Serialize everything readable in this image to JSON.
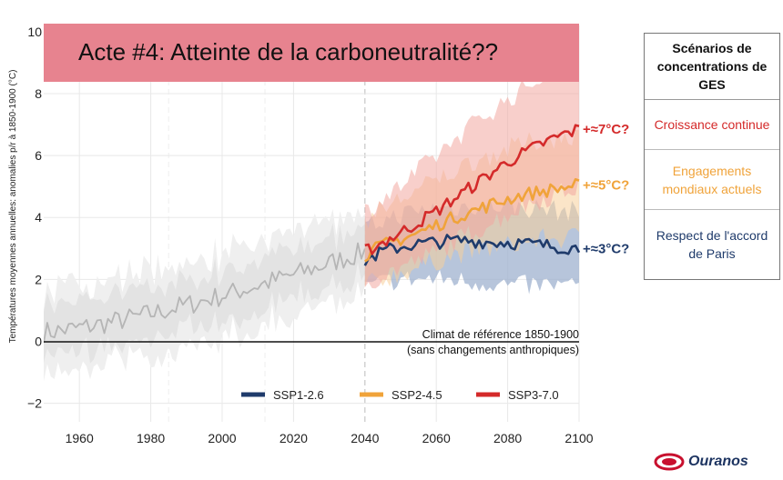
{
  "chart_data": {
    "type": "line",
    "title": "Acte #4: Atteinte de la carboneutralité??",
    "ylabel": "Températures moyennes annuelles: anomalies p/r à 1850-1900 (°C)",
    "xlabel": "",
    "xlim": [
      1950,
      2100
    ],
    "ylim": [
      -2.6,
      10.2
    ],
    "x_ticks": [
      "1960",
      "1980",
      "2000",
      "2020",
      "2040",
      "2060",
      "2080",
      "2100"
    ],
    "y_ticks": [
      "−2",
      "0",
      "2",
      "4",
      "6",
      "8",
      "10"
    ],
    "grid": true,
    "historical": {
      "x_start": 1950,
      "x_end": 2040,
      "mean_start": 0.3,
      "mean_end": 2.9,
      "colors": {
        "line": "#b5b5b5",
        "band": "#e3e3e3",
        "band_outer": "#efefef"
      }
    },
    "reference_line": {
      "y": 0,
      "label_line1": "Climat de référence 1850-1900",
      "label_line2": "(sans changements anthropiques)"
    },
    "series": [
      {
        "name": "SSP1-2.6",
        "color": "#1f3b6b",
        "band_color": "#9fb2cf",
        "x": [
          2040,
          2045,
          2050,
          2055,
          2060,
          2065,
          2070,
          2075,
          2080,
          2085,
          2090,
          2095,
          2100
        ],
        "values": [
          2.6,
          2.9,
          3.05,
          3.15,
          3.2,
          3.25,
          3.25,
          3.2,
          3.2,
          3.15,
          3.1,
          3.05,
          3.0
        ],
        "band_low": [
          1.7,
          1.9,
          2.0,
          2.0,
          2.0,
          2.0,
          1.9,
          1.9,
          1.8,
          1.8,
          1.8,
          1.8,
          1.8
        ],
        "band_high": [
          3.6,
          3.9,
          4.1,
          4.2,
          4.3,
          4.3,
          4.4,
          4.4,
          4.4,
          4.3,
          4.3,
          4.2,
          4.2
        ],
        "end_label": "+≈3°C?"
      },
      {
        "name": "SSP2-4.5",
        "color": "#f0a33a",
        "band_color": "#f7cf9a",
        "x": [
          2040,
          2045,
          2050,
          2055,
          2060,
          2065,
          2070,
          2075,
          2080,
          2085,
          2090,
          2095,
          2100
        ],
        "values": [
          2.8,
          3.1,
          3.3,
          3.5,
          3.75,
          4.0,
          4.2,
          4.4,
          4.6,
          4.75,
          4.85,
          4.95,
          5.05
        ],
        "band_low": [
          1.8,
          2.0,
          2.2,
          2.4,
          2.6,
          2.8,
          2.9,
          3.0,
          3.1,
          3.2,
          3.3,
          3.3,
          3.4
        ],
        "band_high": [
          3.9,
          4.3,
          4.6,
          4.9,
          5.2,
          5.5,
          5.8,
          6.0,
          6.2,
          6.4,
          6.5,
          6.6,
          6.7
        ],
        "end_label": "+≈5°C?"
      },
      {
        "name": "SSP3-7.0",
        "color": "#d42a2a",
        "band_color": "#f3a8a0",
        "x": [
          2040,
          2045,
          2050,
          2055,
          2060,
          2065,
          2070,
          2075,
          2080,
          2085,
          2090,
          2095,
          2100
        ],
        "values": [
          2.9,
          3.2,
          3.5,
          3.85,
          4.2,
          4.6,
          5.0,
          5.4,
          5.8,
          6.1,
          6.4,
          6.65,
          6.85
        ],
        "band_low": [
          1.9,
          2.1,
          2.4,
          2.6,
          2.9,
          3.2,
          3.5,
          3.8,
          4.1,
          4.4,
          4.6,
          4.8,
          5.0
        ],
        "band_high": [
          4.2,
          4.6,
          5.0,
          5.5,
          6.0,
          6.5,
          7.0,
          7.4,
          7.8,
          8.2,
          8.6,
          8.9,
          9.2
        ],
        "end_label": "+≈7°C?"
      }
    ]
  },
  "panel": {
    "header": "Scénarios de concentrations de GES",
    "items": [
      {
        "label": "Croissance continue",
        "color": "#d42a2a"
      },
      {
        "label": "Engagements mondiaux actuels",
        "color": "#f0a33a"
      },
      {
        "label": "Respect de l'accord de Paris",
        "color": "#1f3b6b"
      }
    ]
  },
  "logo": {
    "text": "Ouranos",
    "icon": "ouranos-swoosh-icon",
    "color": "#c8102e"
  },
  "colors": {
    "banner": "#e7838f"
  }
}
